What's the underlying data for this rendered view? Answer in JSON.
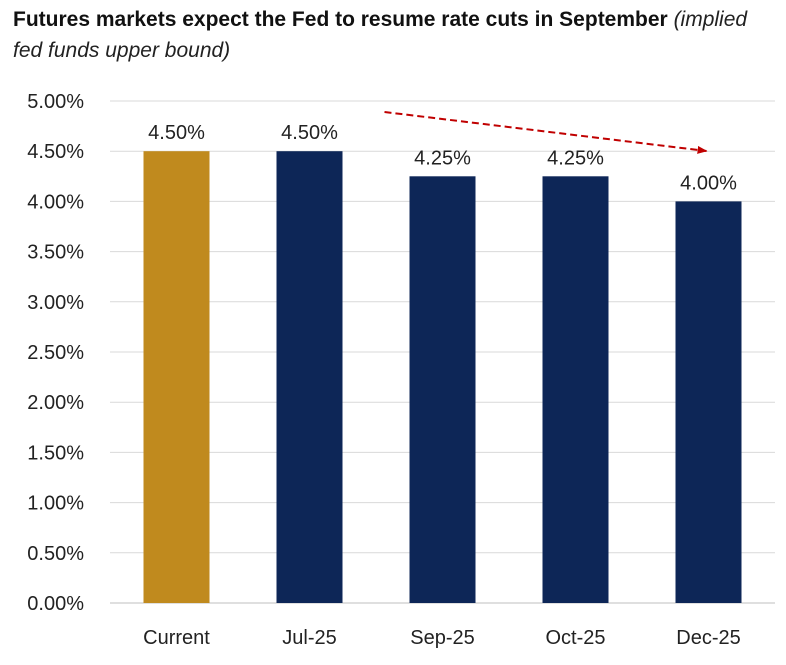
{
  "chart_data": {
    "type": "bar",
    "title": "Futures markets expect the Fed to resume rate cuts in September",
    "subtitle": "(implied fed funds upper bound)",
    "categories": [
      "Current",
      "Jul-25",
      "Sep-25",
      "Oct-25",
      "Dec-25"
    ],
    "values": [
      4.5,
      4.5,
      4.25,
      4.25,
      4.0
    ],
    "data_labels": [
      "4.50%",
      "4.50%",
      "4.25%",
      "4.25%",
      "4.00%"
    ],
    "bar_colors": [
      "#C08A1E",
      "#0D2657",
      "#0D2657",
      "#0D2657",
      "#0D2657"
    ],
    "y_ticks": [
      0,
      0.5,
      1.0,
      1.5,
      2.0,
      2.5,
      3.0,
      3.5,
      4.0,
      4.5,
      5.0
    ],
    "y_tick_labels": [
      "0.00%",
      "0.50%",
      "1.00%",
      "1.50%",
      "2.00%",
      "2.50%",
      "3.00%",
      "3.50%",
      "4.00%",
      "4.50%",
      "5.00%"
    ],
    "ylim": [
      0,
      5.0
    ],
    "xlabel": "",
    "ylabel": "",
    "grid": true,
    "legend": "none",
    "annotation": {
      "type": "dashed-arrow",
      "color": "#C00000",
      "from_category": "Sep-25",
      "to_category": "Dec-25",
      "direction": "down"
    }
  }
}
